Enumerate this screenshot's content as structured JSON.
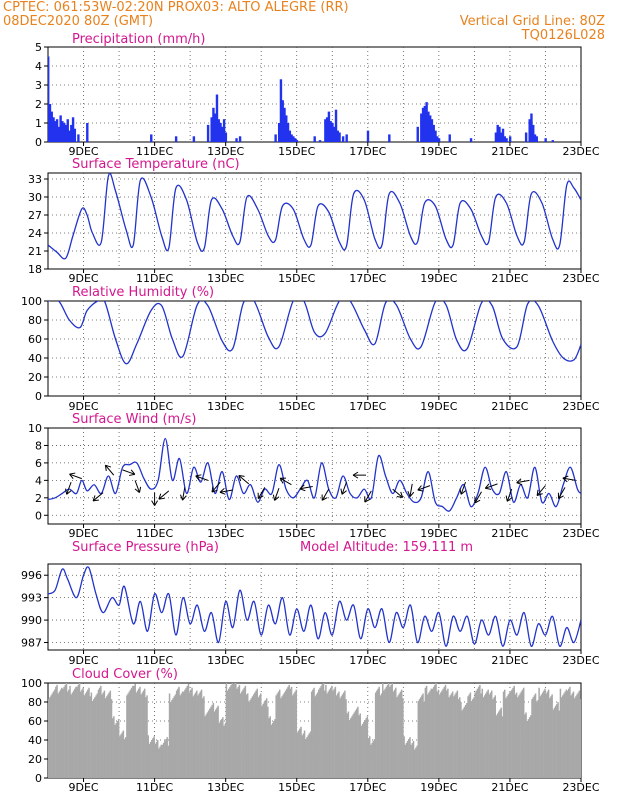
{
  "header": {
    "line1": "CPTEC:   061:53W-02:20N   PROX03: ALTO ALEGRE (RR)",
    "line2": "08DEC2020 80Z (GMT)",
    "grid_note": "Vertical Grid Line: 80Z",
    "code": "TQ0126L028"
  },
  "colors": {
    "title": "#d4178f",
    "line": "#2233cc",
    "bar": "#2233ee",
    "cloud": "#a8a8a8",
    "header": "#e8821e"
  },
  "chart_data": [
    {
      "type": "bar",
      "title": "Precipitation (mm/h)",
      "ylim": [
        0,
        5
      ],
      "yticks": [
        0,
        1,
        2,
        3,
        4,
        5
      ],
      "xlim": [
        8,
        23
      ],
      "xticks": [
        "9DEC",
        "11DEC",
        "13DEC",
        "15DEC",
        "17DEC",
        "19DEC",
        "21DEC",
        "23DEC"
      ],
      "x": [
        8.0,
        8.05,
        8.1,
        8.15,
        8.2,
        8.25,
        8.3,
        8.35,
        8.4,
        8.45,
        8.5,
        8.55,
        8.6,
        8.65,
        8.7,
        8.75,
        8.85,
        9.1,
        10.9,
        11.6,
        12.1,
        12.5,
        12.6,
        12.65,
        12.7,
        12.75,
        12.8,
        12.85,
        12.9,
        12.95,
        13.0,
        13.3,
        13.4,
        14.4,
        14.5,
        14.55,
        14.6,
        14.65,
        14.7,
        14.75,
        14.8,
        14.85,
        14.9,
        14.95,
        15.0,
        15.5,
        15.65,
        15.8,
        15.85,
        15.9,
        15.95,
        16.0,
        16.05,
        16.1,
        16.15,
        16.2,
        16.3,
        16.4,
        17.0,
        17.6,
        18.4,
        18.5,
        18.55,
        18.6,
        18.65,
        18.7,
        18.75,
        18.8,
        18.85,
        18.9,
        18.95,
        19.0,
        19.3,
        19.9,
        20.6,
        20.65,
        20.7,
        20.75,
        20.8,
        20.85,
        20.9,
        21.0,
        21.45,
        21.55,
        21.6,
        21.65,
        21.7,
        21.75,
        22.0,
        22.2
      ],
      "values": [
        4.5,
        2.0,
        1.6,
        1.3,
        1.1,
        1.2,
        0.8,
        1.4,
        1.1,
        1.0,
        0.9,
        1.2,
        0.6,
        0.9,
        1.3,
        0.7,
        0.4,
        1.0,
        0.4,
        0.3,
        0.3,
        0.9,
        1.3,
        1.8,
        1.5,
        2.5,
        1.2,
        1.0,
        0.8,
        1.2,
        0.5,
        0.2,
        0.3,
        0.4,
        1.0,
        3.3,
        2.2,
        1.8,
        1.4,
        1.0,
        0.6,
        0.4,
        0.3,
        0.2,
        0.1,
        0.3,
        0.1,
        1.2,
        1.3,
        1.6,
        1.1,
        1.0,
        0.8,
        1.7,
        0.6,
        0.5,
        0.3,
        0.4,
        0.6,
        0.4,
        0.8,
        1.5,
        1.8,
        1.9,
        2.1,
        1.6,
        1.4,
        1.2,
        0.9,
        0.6,
        0.3,
        0.2,
        0.4,
        0.2,
        0.5,
        0.9,
        0.8,
        0.5,
        0.7,
        0.3,
        0.2,
        0.3,
        0.5,
        1.2,
        1.5,
        0.9,
        0.4,
        0.3,
        0.2,
        0.1
      ]
    },
    {
      "type": "line",
      "title": "Surface Temperature (nC)",
      "ylim": [
        18,
        34
      ],
      "yticks": [
        18,
        21,
        24,
        27,
        30,
        33
      ],
      "xlim": [
        8,
        23
      ],
      "xticks": [
        "9DEC",
        "11DEC",
        "13DEC",
        "15DEC",
        "17DEC",
        "19DEC",
        "21DEC",
        "23DEC"
      ],
      "x": [
        8.0,
        8.25,
        8.5,
        8.7,
        8.95,
        9.1,
        9.25,
        9.5,
        9.7,
        9.9,
        10.2,
        10.4,
        10.6,
        10.9,
        11.2,
        11.4,
        11.6,
        11.9,
        12.2,
        12.4,
        12.6,
        12.9,
        13.2,
        13.4,
        13.6,
        13.9,
        14.2,
        14.4,
        14.6,
        14.9,
        15.2,
        15.4,
        15.6,
        15.9,
        16.2,
        16.4,
        16.6,
        16.9,
        17.2,
        17.4,
        17.6,
        17.9,
        18.2,
        18.4,
        18.6,
        18.9,
        19.2,
        19.4,
        19.6,
        19.9,
        20.2,
        20.4,
        20.6,
        20.9,
        21.2,
        21.4,
        21.6,
        21.9,
        22.2,
        22.4,
        22.6,
        22.8,
        23.0
      ],
      "values": [
        22.0,
        20.8,
        19.8,
        23.5,
        28.0,
        27.0,
        24.0,
        22.5,
        33.5,
        31.0,
        24.5,
        22.0,
        32.8,
        30.0,
        23.5,
        21.5,
        31.5,
        29.5,
        22.5,
        21.5,
        29.5,
        28.0,
        23.5,
        22.5,
        30.0,
        28.0,
        23.5,
        22.8,
        28.5,
        28.0,
        23.0,
        22.0,
        28.5,
        27.5,
        22.5,
        21.8,
        30.5,
        29.5,
        23.0,
        22.0,
        30.5,
        29.0,
        23.5,
        22.5,
        29.0,
        28.5,
        23.0,
        22.0,
        29.0,
        28.0,
        23.5,
        22.5,
        30.0,
        29.0,
        23.5,
        22.5,
        30.5,
        29.0,
        23.0,
        22.0,
        32.0,
        31.5,
        29.5
      ]
    },
    {
      "type": "line",
      "title": "Relative Humidity (%)",
      "ylim": [
        0,
        100
      ],
      "yticks": [
        0,
        20,
        40,
        60,
        80,
        100
      ],
      "xlim": [
        8,
        23
      ],
      "xticks": [
        "9DEC",
        "11DEC",
        "13DEC",
        "15DEC",
        "17DEC",
        "19DEC",
        "21DEC",
        "23DEC"
      ],
      "x": [
        8.0,
        8.3,
        8.6,
        8.9,
        9.1,
        9.4,
        9.6,
        9.9,
        10.2,
        10.5,
        10.9,
        11.2,
        11.5,
        11.8,
        12.2,
        12.5,
        12.9,
        13.2,
        13.5,
        13.8,
        14.2,
        14.5,
        14.9,
        15.2,
        15.5,
        15.8,
        16.2,
        16.5,
        16.9,
        17.2,
        17.5,
        17.8,
        18.2,
        18.5,
        18.9,
        19.2,
        19.5,
        19.8,
        20.2,
        20.5,
        20.8,
        21.2,
        21.5,
        21.8,
        22.2,
        22.5,
        22.8,
        23.0
      ],
      "values": [
        100,
        100,
        80,
        72,
        90,
        100,
        99,
        60,
        34,
        55,
        90,
        95,
        60,
        42,
        96,
        95,
        58,
        50,
        98,
        100,
        62,
        52,
        100,
        100,
        67,
        66,
        100,
        100,
        70,
        55,
        98,
        96,
        60,
        52,
        99,
        96,
        59,
        50,
        98,
        95,
        60,
        52,
        97,
        95,
        58,
        40,
        38,
        54
      ]
    },
    {
      "type": "line",
      "title": "Surface Wind (m/s)",
      "ylim": [
        -1,
        10
      ],
      "yticks": [
        0,
        2,
        4,
        6,
        8,
        10
      ],
      "xlim": [
        8,
        23
      ],
      "xticks": [
        "9DEC",
        "11DEC",
        "13DEC",
        "15DEC",
        "17DEC",
        "19DEC",
        "21DEC",
        "23DEC"
      ],
      "x": [
        8.0,
        8.2,
        8.4,
        8.6,
        8.8,
        8.95,
        9.1,
        9.3,
        9.5,
        9.7,
        9.9,
        10.1,
        10.3,
        10.5,
        10.7,
        10.9,
        11.1,
        11.3,
        11.5,
        11.7,
        11.9,
        12.1,
        12.3,
        12.5,
        12.7,
        12.9,
        13.1,
        13.3,
        13.5,
        13.7,
        13.9,
        14.1,
        14.3,
        14.5,
        14.7,
        14.9,
        15.1,
        15.3,
        15.5,
        15.7,
        15.9,
        16.1,
        16.3,
        16.5,
        16.7,
        16.9,
        17.1,
        17.3,
        17.5,
        17.7,
        17.9,
        18.1,
        18.3,
        18.5,
        18.7,
        18.9,
        19.1,
        19.3,
        19.5,
        19.7,
        19.9,
        20.1,
        20.3,
        20.5,
        20.7,
        20.9,
        21.1,
        21.3,
        21.5,
        21.7,
        21.9,
        22.1,
        22.3,
        22.5,
        22.7,
        22.9,
        23.0
      ],
      "values": [
        1.8,
        2.0,
        2.5,
        3.0,
        2.5,
        4.0,
        2.8,
        3.5,
        2.5,
        4.5,
        2.5,
        5.5,
        5.8,
        6.0,
        4.2,
        3.0,
        4.0,
        8.8,
        4.0,
        6.5,
        2.5,
        5.5,
        3.8,
        6.0,
        2.5,
        5.0,
        1.8,
        4.5,
        2.5,
        3.5,
        1.5,
        3.0,
        2.5,
        5.8,
        3.0,
        2.0,
        3.0,
        4.0,
        2.0,
        6.0,
        3.0,
        2.0,
        4.5,
        2.5,
        2.0,
        3.0,
        2.0,
        6.8,
        4.5,
        2.5,
        4.0,
        2.5,
        1.5,
        2.0,
        5.0,
        1.5,
        1.0,
        0.5,
        2.0,
        3.5,
        1.0,
        2.5,
        5.5,
        3.0,
        2.5,
        5.0,
        1.5,
        3.5,
        2.0,
        5.5,
        1.5,
        2.5,
        1.0,
        3.5,
        5.5,
        3.0,
        2.5
      ],
      "arrows": [
        {
          "x": 8.65,
          "speed": 3.8,
          "dir_deg": 200
        },
        {
          "x": 8.95,
          "speed": 4.2,
          "dir_deg": 290
        },
        {
          "x": 9.55,
          "speed": 2.6,
          "dir_deg": 230
        },
        {
          "x": 9.85,
          "speed": 4.6,
          "dir_deg": 320
        },
        {
          "x": 10.1,
          "speed": 5.2,
          "dir_deg": 110
        },
        {
          "x": 10.45,
          "speed": 4.0,
          "dir_deg": 160
        },
        {
          "x": 11.0,
          "speed": 2.6,
          "dir_deg": 180
        },
        {
          "x": 11.4,
          "speed": 2.8,
          "dir_deg": 230
        },
        {
          "x": 11.85,
          "speed": 3.2,
          "dir_deg": 190
        },
        {
          "x": 12.5,
          "speed": 4.0,
          "dir_deg": 290
        },
        {
          "x": 12.85,
          "speed": 3.8,
          "dir_deg": 220
        },
        {
          "x": 13.2,
          "speed": 2.9,
          "dir_deg": 260
        },
        {
          "x": 13.65,
          "speed": 3.6,
          "dir_deg": 310
        },
        {
          "x": 14.1,
          "speed": 3.2,
          "dir_deg": 210
        },
        {
          "x": 14.5,
          "speed": 3.1,
          "dir_deg": 200
        },
        {
          "x": 14.85,
          "speed": 3.5,
          "dir_deg": 300
        },
        {
          "x": 15.45,
          "speed": 3.3,
          "dir_deg": 260
        },
        {
          "x": 15.9,
          "speed": 3.0,
          "dir_deg": 210
        },
        {
          "x": 16.4,
          "speed": 3.8,
          "dir_deg": 200
        },
        {
          "x": 16.95,
          "speed": 4.6,
          "dir_deg": 270
        },
        {
          "x": 17.1,
          "speed": 2.8,
          "dir_deg": 210
        },
        {
          "x": 17.7,
          "speed": 3.0,
          "dir_deg": 130
        },
        {
          "x": 18.25,
          "speed": 3.6,
          "dir_deg": 190
        },
        {
          "x": 18.75,
          "speed": 3.4,
          "dir_deg": 250
        },
        {
          "x": 19.75,
          "speed": 3.8,
          "dir_deg": 200
        },
        {
          "x": 20.2,
          "speed": 2.7,
          "dir_deg": 210
        },
        {
          "x": 20.65,
          "speed": 3.6,
          "dir_deg": 250
        },
        {
          "x": 21.05,
          "speed": 3.0,
          "dir_deg": 200
        },
        {
          "x": 21.55,
          "speed": 4.0,
          "dir_deg": 260
        },
        {
          "x": 22.0,
          "speed": 3.4,
          "dir_deg": 220
        },
        {
          "x": 22.55,
          "speed": 3.2,
          "dir_deg": 210
        },
        {
          "x": 22.85,
          "speed": 4.0,
          "dir_deg": 280
        }
      ]
    },
    {
      "type": "line",
      "title": "Surface Pressure (hPa)",
      "annotation": "Model Altitude: 159.111 m",
      "ylim": [
        986,
        997.5
      ],
      "yticks": [
        987,
        990,
        993,
        996
      ],
      "xlim": [
        8,
        23
      ],
      "xticks": [
        "9DEC",
        "11DEC",
        "13DEC",
        "15DEC",
        "17DEC",
        "19DEC",
        "21DEC",
        "23DEC"
      ],
      "x": [
        8.0,
        8.2,
        8.4,
        8.55,
        8.8,
        9.0,
        9.15,
        9.35,
        9.55,
        9.8,
        10.0,
        10.15,
        10.4,
        10.6,
        10.8,
        11.0,
        11.2,
        11.4,
        11.6,
        11.8,
        12.0,
        12.2,
        12.4,
        12.6,
        12.8,
        13.0,
        13.2,
        13.4,
        13.6,
        13.8,
        14.0,
        14.2,
        14.4,
        14.6,
        14.8,
        15.0,
        15.2,
        15.4,
        15.6,
        15.8,
        16.0,
        16.2,
        16.4,
        16.6,
        16.8,
        17.0,
        17.2,
        17.4,
        17.6,
        17.8,
        18.0,
        18.2,
        18.4,
        18.6,
        18.8,
        19.0,
        19.2,
        19.4,
        19.6,
        19.8,
        20.0,
        20.2,
        20.4,
        20.6,
        20.8,
        21.0,
        21.2,
        21.4,
        21.6,
        21.8,
        22.0,
        22.2,
        22.4,
        22.6,
        22.8,
        23.0
      ],
      "values": [
        993.5,
        994.0,
        996.8,
        995.5,
        993.0,
        996.0,
        997.0,
        993.5,
        991.0,
        993.0,
        992.0,
        994.5,
        989.5,
        992.5,
        988.5,
        993.5,
        991.0,
        993.5,
        988.0,
        993.0,
        989.5,
        992.0,
        988.5,
        991.0,
        987.0,
        992.5,
        989.0,
        994.0,
        990.0,
        992.5,
        988.0,
        992.0,
        989.5,
        993.0,
        988.0,
        991.5,
        988.5,
        992.0,
        987.5,
        991.0,
        988.0,
        992.5,
        990.0,
        992.0,
        987.5,
        991.5,
        989.0,
        991.5,
        987.0,
        991.0,
        989.0,
        992.0,
        987.0,
        990.5,
        988.5,
        991.0,
        986.5,
        990.5,
        988.5,
        990.5,
        986.8,
        990.0,
        988.0,
        990.5,
        986.5,
        990.0,
        988.0,
        991.0,
        986.5,
        989.5,
        988.0,
        990.5,
        986.5,
        989.0,
        987.0,
        990.0
      ]
    },
    {
      "type": "area",
      "title": "Cloud Cover (%)",
      "ylim": [
        0,
        100
      ],
      "yticks": [
        0,
        20,
        40,
        60,
        80,
        100
      ],
      "xlim": [
        8,
        23
      ],
      "xticks": [
        "9DEC",
        "11DEC",
        "13DEC",
        "15DEC",
        "17DEC",
        "19DEC",
        "21DEC",
        "23DEC"
      ],
      "x": [
        8.0,
        8.2,
        8.4,
        8.6,
        8.8,
        9.0,
        9.2,
        9.4,
        9.6,
        9.8,
        10.0,
        10.2,
        10.4,
        10.6,
        10.8,
        11.0,
        11.2,
        11.4,
        11.6,
        11.8,
        12.0,
        12.2,
        12.4,
        12.6,
        12.8,
        13.0,
        13.2,
        13.4,
        13.6,
        13.8,
        14.0,
        14.2,
        14.4,
        14.6,
        14.8,
        15.0,
        15.2,
        15.4,
        15.6,
        15.8,
        16.0,
        16.2,
        16.4,
        16.6,
        16.8,
        17.0,
        17.2,
        17.4,
        17.6,
        17.8,
        18.0,
        18.2,
        18.4,
        18.6,
        18.8,
        19.0,
        19.2,
        19.4,
        19.6,
        19.8,
        20.0,
        20.2,
        20.4,
        20.6,
        20.8,
        21.0,
        21.2,
        21.4,
        21.6,
        21.8,
        22.0,
        22.2,
        22.4,
        22.6,
        22.8,
        23.0
      ],
      "values": [
        88,
        94,
        96,
        92,
        95,
        90,
        86,
        93,
        88,
        60,
        45,
        92,
        95,
        90,
        40,
        35,
        38,
        85,
        92,
        95,
        90,
        88,
        70,
        75,
        60,
        96,
        98,
        92,
        85,
        90,
        80,
        60,
        88,
        93,
        92,
        50,
        45,
        90,
        96,
        94,
        92,
        88,
        65,
        70,
        60,
        40,
        92,
        96,
        95,
        88,
        40,
        35,
        85,
        92,
        95,
        93,
        90,
        88,
        75,
        85,
        93,
        90,
        88,
        70,
        88,
        92,
        90,
        65,
        85,
        90,
        88,
        75,
        90,
        92,
        88,
        90
      ]
    }
  ]
}
